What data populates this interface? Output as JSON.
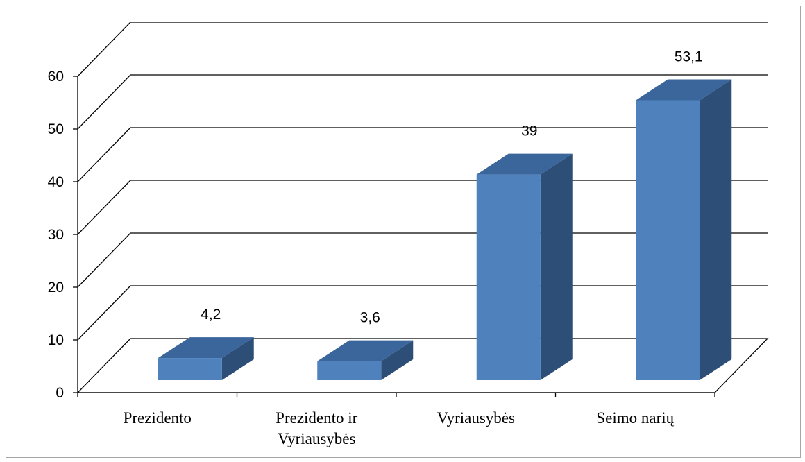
{
  "chart_data": {
    "type": "bar",
    "style": "3d-column",
    "categories": [
      [
        "Prezidento"
      ],
      [
        "Prezidento ir",
        "Vyriausybės"
      ],
      [
        "Vyriausybės"
      ],
      [
        "Seimo narių"
      ]
    ],
    "values": [
      4.2,
      3.6,
      39,
      53.1
    ],
    "data_labels": [
      "4,2",
      "3,6",
      "39",
      "53,1"
    ],
    "title": "",
    "xlabel": "",
    "ylabel": "",
    "ylim": [
      0,
      60
    ],
    "yticks": [
      0,
      10,
      20,
      30,
      40,
      50,
      60
    ],
    "grid": true,
    "legend": "none",
    "colors": {
      "bar_front": "#4f81bd",
      "bar_side": "#2d4e77",
      "bar_top": "#3a669b",
      "grid": "#000000",
      "frame": "#a6a6a6"
    }
  }
}
